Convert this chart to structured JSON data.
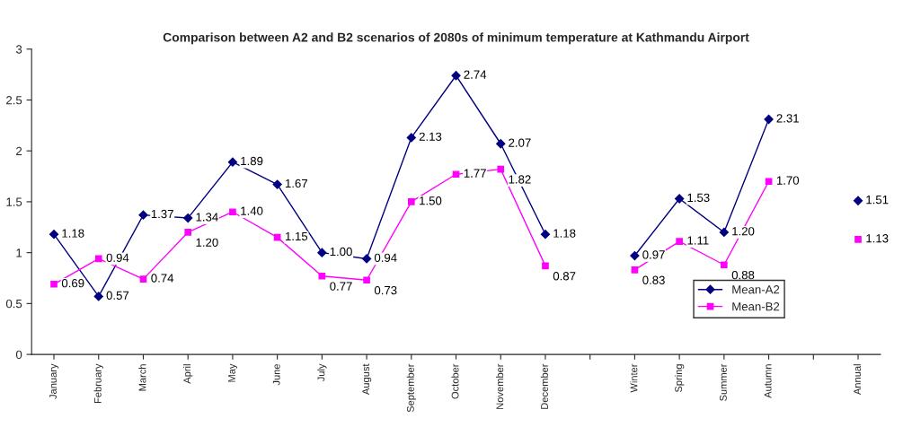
{
  "chart_data": {
    "type": "line",
    "title": "Comparison between A2 and B2 scenarios of 2080s of minimum temperature at Kathmandu Airport",
    "categories": [
      "January",
      "February",
      "March",
      "April",
      "May",
      "June",
      "July",
      "August",
      "September",
      "October",
      "November",
      "December",
      null,
      "Winter",
      "Spring",
      "Summer",
      "Autumn",
      null,
      "Annual"
    ],
    "series": [
      {
        "name": "Mean-A2",
        "color": "#000080",
        "marker": "diamond",
        "values": [
          1.18,
          0.57,
          1.37,
          1.34,
          1.89,
          1.67,
          1.0,
          0.94,
          2.13,
          2.74,
          2.07,
          1.18,
          null,
          0.97,
          1.53,
          1.2,
          2.31,
          null,
          1.51
        ],
        "value_labels": [
          "1.18",
          "0.57",
          "1.37",
          "1.34",
          "1.89",
          "1.67",
          "1.00",
          "0.94",
          "2.13",
          "2.74",
          "2.07",
          "1.18",
          null,
          "0.97",
          "1.53",
          "1.20",
          "2.31",
          null,
          "1.51"
        ]
      },
      {
        "name": "Mean-B2",
        "color": "#ff00ff",
        "marker": "square",
        "values": [
          0.69,
          0.94,
          0.74,
          1.2,
          1.4,
          1.15,
          0.77,
          0.73,
          1.5,
          1.77,
          1.82,
          0.87,
          null,
          0.83,
          1.11,
          0.88,
          1.7,
          null,
          1.13
        ],
        "value_labels": [
          "0.69",
          "0.94",
          "0.74",
          "1.20",
          "1.40",
          "1.15",
          "0.77",
          "0.73",
          "1.50",
          "1.77",
          "1.82",
          "0.87",
          null,
          "0.83",
          "1.11",
          "0.88",
          "1.70",
          null,
          "1.13"
        ]
      }
    ],
    "ylim": [
      0,
      3
    ],
    "yticks": [
      0,
      0.5,
      1,
      1.5,
      2,
      2.5,
      3
    ],
    "legend": "bottom right",
    "grid": false
  }
}
